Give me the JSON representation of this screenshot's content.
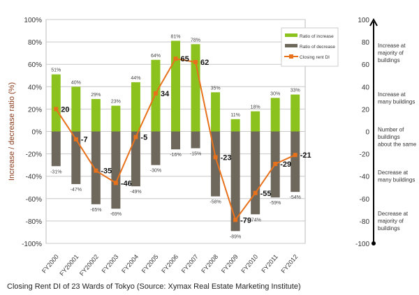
{
  "chart_data": {
    "type": "bar",
    "categories": [
      "FY2000",
      "FY20001",
      "FY20002",
      "FY2003",
      "FY2004",
      "FY2005",
      "FY2006",
      "FY2007",
      "FY2008",
      "FY2009",
      "FY2010",
      "FY2011",
      "FY2012"
    ],
    "series": [
      {
        "name": "Ratio of increase",
        "type": "bar",
        "color": "#8cc21e",
        "values": [
          51,
          40,
          29,
          23,
          44,
          64,
          81,
          78,
          35,
          11,
          18,
          30,
          33
        ]
      },
      {
        "name": "Ratio of decrease",
        "type": "bar",
        "color": "#6e675c",
        "values": [
          -31,
          -47,
          -65,
          -69,
          -49,
          -30,
          -16,
          -15,
          -58,
          -89,
          -74,
          -59,
          -54
        ]
      },
      {
        "name": "Closing rent DI",
        "type": "line",
        "color": "#e8721c",
        "values": [
          20,
          -7,
          -35,
          -46,
          -5,
          34,
          65,
          62,
          -23,
          -79,
          -55,
          -29,
          -21
        ]
      }
    ],
    "ylabel": "Increase / decrease ratio (%)",
    "ylim": [
      -100,
      100
    ],
    "yticks": [
      "100%",
      "80%",
      "60%",
      "40%",
      "20%",
      "0%",
      "-20%",
      "-40%",
      "-60%",
      "-80%",
      "-100%"
    ],
    "y2lim": [
      -100,
      100
    ],
    "y2ticks": [
      "100",
      "80",
      "60",
      "40",
      "20",
      "0",
      "-20",
      "-40",
      "-60",
      "-80",
      "-100"
    ],
    "y2_annotations": [
      {
        "value": 70,
        "lines": [
          "Increase at",
          "majority of",
          "buildings"
        ]
      },
      {
        "value": 30,
        "lines": [
          "Increase at",
          "many buildings"
        ]
      },
      {
        "value": -5,
        "lines": [
          "Number of",
          "buildings",
          "about the same"
        ]
      },
      {
        "value": -40,
        "lines": [
          "Decrease at",
          "many buildings"
        ]
      },
      {
        "value": -80,
        "lines": [
          "Decrease at",
          "majority of",
          "buildings"
        ]
      }
    ],
    "grid": true,
    "legend": "top-right"
  },
  "caption": "Closing Rent DI of 23 Wards of Tokyo (Source: Xymax Real Estate Marketing Institute)"
}
